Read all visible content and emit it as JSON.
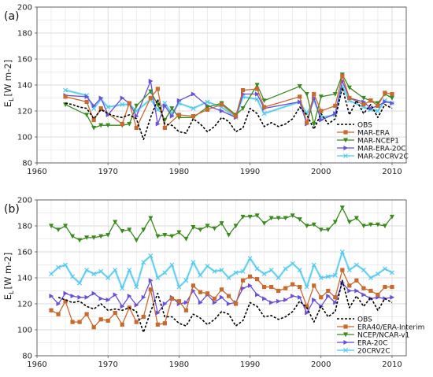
{
  "chart_data": [
    {
      "type": "line",
      "panel_label": "(a)",
      "ylabel_main": "E",
      "ylabel_sub": "L",
      "ylabel_unit": "[W m-2]",
      "xlim": [
        1960,
        2012
      ],
      "ylim": [
        80,
        200
      ],
      "xticks": [
        1960,
        1970,
        1980,
        1990,
        2000,
        2010
      ],
      "yticks": [
        80,
        100,
        120,
        140,
        160,
        180,
        200
      ],
      "grid": true,
      "legend_position": "bottom-right",
      "series": [
        {
          "name": "OBS",
          "color": "#000000",
          "dash": "3,2",
          "marker": "none",
          "x": [
            1964,
            1965,
            1966,
            1967,
            1968,
            1969,
            1970,
            1971,
            1972,
            1973,
            1974,
            1975,
            1976,
            1977,
            1978,
            1979,
            1980,
            1981,
            1982,
            1983,
            1984,
            1985,
            1986,
            1987,
            1988,
            1989,
            1990,
            1991,
            1992,
            1993,
            1994,
            1995,
            1996,
            1997,
            1998,
            1999,
            2000,
            2001,
            2002,
            2003,
            2004,
            2005,
            2006,
            2007,
            2008,
            2009,
            2010
          ],
          "y": [
            126,
            125,
            123,
            122,
            114,
            121,
            118,
            116,
            115,
            117,
            114,
            98,
            115,
            129,
            110,
            109,
            104,
            103,
            114,
            110,
            104,
            108,
            115,
            112,
            104,
            107,
            122,
            118,
            108,
            111,
            108,
            110,
            114,
            123,
            117,
            106,
            118,
            110,
            114,
            138,
            117,
            128,
            118,
            125,
            115,
            125,
            122
          ]
        },
        {
          "name": "MAR-ERA",
          "color": "#c8692e",
          "dash": "",
          "marker": "square",
          "x": [
            1964,
            1967,
            1968,
            1969,
            1972,
            1973,
            1974,
            1976,
            1977,
            1978,
            1980,
            1982,
            1984,
            1986,
            1988,
            1989,
            1991,
            1992,
            1997,
            1998,
            1999,
            2000,
            2002,
            2003,
            2004,
            2006,
            2007,
            2008,
            2009,
            2010
          ],
          "y": [
            131,
            127,
            113,
            122,
            110,
            126,
            107,
            130,
            137,
            107,
            117,
            116,
            121,
            125,
            116,
            136,
            137,
            123,
            131,
            111,
            133,
            120,
            124,
            147,
            130,
            125,
            128,
            124,
            134,
            133
          ]
        },
        {
          "name": "MAR-NCEP1",
          "color": "#3a8a1e",
          "dash": "",
          "marker": "triangle-down",
          "x": [
            1964,
            1967,
            1968,
            1969,
            1970,
            1972,
            1973,
            1974,
            1976,
            1977,
            1978,
            1979,
            1980,
            1982,
            1984,
            1986,
            1988,
            1989,
            1991,
            1992,
            1997,
            1998,
            1999,
            2000,
            2002,
            2003,
            2004,
            2006,
            2007,
            2008,
            2009,
            2010
          ],
          "y": [
            125,
            117,
            107,
            109,
            109,
            109,
            110,
            124,
            135,
            125,
            113,
            122,
            115,
            115,
            123,
            126,
            117,
            122,
            140,
            128,
            139,
            133,
            110,
            131,
            133,
            148,
            138,
            130,
            128,
            126,
            133,
            130
          ]
        },
        {
          "name": "MAR-ERA-20C",
          "color": "#6a4fd8",
          "dash": "",
          "marker": "triangle-right",
          "x": [
            1964,
            1967,
            1968,
            1969,
            1970,
            1972,
            1973,
            1974,
            1976,
            1977,
            1978,
            1979,
            1980,
            1982,
            1984,
            1986,
            1988,
            1989,
            1991,
            1992,
            1997,
            1998,
            1999,
            2000,
            2002,
            2003,
            2004,
            2006,
            2007,
            2008,
            2009,
            2010
          ],
          "y": [
            132,
            131,
            124,
            130,
            117,
            130,
            126,
            116,
            143,
            110,
            124,
            116,
            128,
            133,
            124,
            120,
            115,
            133,
            133,
            122,
            127,
            110,
            130,
            113,
            118,
            143,
            130,
            127,
            122,
            124,
            127,
            126
          ]
        },
        {
          "name": "MAR-20CRV2C",
          "color": "#4fc9ec",
          "dash": "",
          "marker": "x",
          "x": [
            1964,
            1967,
            1968,
            1969,
            1970,
            1972,
            1973,
            1974,
            1976,
            1977,
            1978,
            1979,
            1980,
            1982,
            1984,
            1986,
            1988,
            1989,
            1991,
            1992,
            1997,
            1998,
            1999,
            2000,
            2002,
            2003,
            2004,
            2006,
            2007,
            2008,
            2009,
            2010
          ],
          "y": [
            136,
            132,
            122,
            129,
            123,
            125,
            125,
            120,
            129,
            121,
            126,
            118,
            126,
            122,
            127,
            123,
            115,
            131,
            129,
            118,
            127,
            118,
            128,
            115,
            117,
            139,
            128,
            123,
            121,
            120,
            128,
            126
          ]
        }
      ]
    },
    {
      "type": "line",
      "panel_label": "(b)",
      "ylabel_main": "E",
      "ylabel_sub": "L",
      "ylabel_unit": "[W m-2]",
      "xlim": [
        1960,
        2012
      ],
      "ylim": [
        80,
        200
      ],
      "xticks": [
        1960,
        1970,
        1980,
        1990,
        2000,
        2010
      ],
      "yticks": [
        80,
        100,
        120,
        140,
        160,
        180,
        200
      ],
      "grid": true,
      "legend_position": "bottom-right",
      "series": [
        {
          "name": "OBS",
          "color": "#000000",
          "dash": "3,2",
          "marker": "none",
          "x": [
            1963,
            1964,
            1965,
            1966,
            1967,
            1968,
            1969,
            1970,
            1971,
            1972,
            1973,
            1974,
            1975,
            1976,
            1977,
            1978,
            1979,
            1980,
            1981,
            1982,
            1983,
            1984,
            1985,
            1986,
            1987,
            1988,
            1989,
            1990,
            1991,
            1992,
            1993,
            1994,
            1995,
            1996,
            1997,
            1998,
            1999,
            2000,
            2001,
            2002,
            2003,
            2004,
            2005,
            2006,
            2007,
            2008,
            2009,
            2010
          ],
          "y": [
            125,
            123,
            121,
            122,
            118,
            116,
            120,
            115,
            116,
            115,
            117,
            114,
            98,
            114,
            128,
            110,
            110,
            105,
            103,
            112,
            109,
            104,
            108,
            114,
            112,
            103,
            107,
            121,
            118,
            110,
            111,
            108,
            110,
            114,
            122,
            117,
            106,
            118,
            110,
            114,
            138,
            117,
            126,
            118,
            125,
            115,
            124,
            121
          ]
        },
        {
          "name": "ERA40/ERA-Interim",
          "color": "#c8692e",
          "dash": "",
          "marker": "square",
          "x": [
            1962,
            1963,
            1964,
            1965,
            1966,
            1967,
            1968,
            1969,
            1970,
            1971,
            1972,
            1973,
            1974,
            1975,
            1976,
            1977,
            1978,
            1979,
            1980,
            1981,
            1982,
            1983,
            1984,
            1985,
            1986,
            1987,
            1988,
            1989,
            1990,
            1991,
            1992,
            1993,
            1994,
            1995,
            1996,
            1997,
            1998,
            1999,
            2000,
            2001,
            2002,
            2003,
            2004,
            2005,
            2006,
            2007,
            2008,
            2009,
            2010
          ],
          "y": [
            115,
            112,
            122,
            106,
            106,
            112,
            102,
            108,
            107,
            113,
            104,
            117,
            106,
            110,
            131,
            104,
            105,
            124,
            122,
            115,
            134,
            129,
            128,
            124,
            131,
            126,
            120,
            138,
            141,
            139,
            133,
            133,
            130,
            132,
            135,
            133,
            118,
            134,
            125,
            130,
            125,
            146,
            134,
            138,
            132,
            130,
            127,
            133,
            133
          ]
        },
        {
          "name": "NCEP/NCAR-v1",
          "color": "#3a8a1e",
          "dash": "",
          "marker": "triangle-down",
          "x": [
            1962,
            1963,
            1964,
            1965,
            1966,
            1967,
            1968,
            1969,
            1970,
            1971,
            1972,
            1973,
            1974,
            1975,
            1976,
            1977,
            1978,
            1979,
            1980,
            1981,
            1982,
            1983,
            1984,
            1985,
            1986,
            1987,
            1988,
            1989,
            1990,
            1991,
            1992,
            1993,
            1994,
            1995,
            1996,
            1997,
            1998,
            1999,
            2000,
            2001,
            2002,
            2003,
            2004,
            2005,
            2006,
            2007,
            2008,
            2009,
            2010
          ],
          "y": [
            180,
            177,
            180,
            172,
            169,
            171,
            171,
            172,
            173,
            183,
            176,
            177,
            169,
            177,
            186,
            172,
            173,
            172,
            175,
            170,
            179,
            177,
            180,
            178,
            182,
            173,
            180,
            187,
            187,
            188,
            182,
            186,
            186,
            186,
            188,
            185,
            180,
            181,
            177,
            177,
            183,
            194,
            183,
            186,
            180,
            181,
            181,
            180,
            187
          ]
        },
        {
          "name": "ERA-20C",
          "color": "#6a4fd8",
          "dash": "",
          "marker": "triangle-right",
          "x": [
            1962,
            1963,
            1964,
            1965,
            1966,
            1967,
            1968,
            1969,
            1970,
            1971,
            1972,
            1973,
            1974,
            1975,
            1976,
            1977,
            1978,
            1979,
            1980,
            1981,
            1982,
            1983,
            1984,
            1985,
            1986,
            1987,
            1988,
            1989,
            1990,
            1991,
            1992,
            1993,
            1994,
            1995,
            1996,
            1997,
            1998,
            1999,
            2000,
            2001,
            2002,
            2003,
            2004,
            2005,
            2006,
            2007,
            2008,
            2009,
            2010
          ],
          "y": [
            126,
            120,
            128,
            126,
            125,
            125,
            128,
            124,
            123,
            127,
            118,
            126,
            119,
            125,
            138,
            113,
            120,
            125,
            120,
            121,
            130,
            121,
            127,
            121,
            125,
            120,
            121,
            132,
            134,
            127,
            124,
            121,
            122,
            123,
            126,
            125,
            113,
            123,
            118,
            126,
            121,
            136,
            130,
            130,
            127,
            124,
            125,
            124,
            125
          ]
        },
        {
          "name": "20CRV2C",
          "color": "#4fc9ec",
          "dash": "",
          "marker": "x",
          "x": [
            1962,
            1963,
            1964,
            1965,
            1966,
            1967,
            1968,
            1969,
            1970,
            1971,
            1972,
            1973,
            1974,
            1975,
            1976,
            1977,
            1978,
            1979,
            1980,
            1981,
            1982,
            1983,
            1984,
            1985,
            1986,
            1987,
            1988,
            1989,
            1990,
            1991,
            1992,
            1993,
            1994,
            1995,
            1996,
            1997,
            1998,
            1999,
            2000,
            2001,
            2002,
            2003,
            2004,
            2005,
            2006,
            2007,
            2008,
            2009,
            2010
          ],
          "y": [
            143,
            148,
            150,
            141,
            136,
            146,
            143,
            145,
            140,
            146,
            132,
            146,
            133,
            152,
            157,
            140,
            144,
            150,
            133,
            138,
            152,
            142,
            149,
            145,
            146,
            140,
            144,
            145,
            155,
            147,
            143,
            146,
            140,
            147,
            151,
            146,
            133,
            150,
            140,
            141,
            142,
            160,
            146,
            150,
            146,
            140,
            143,
            147,
            144
          ]
        }
      ]
    }
  ]
}
